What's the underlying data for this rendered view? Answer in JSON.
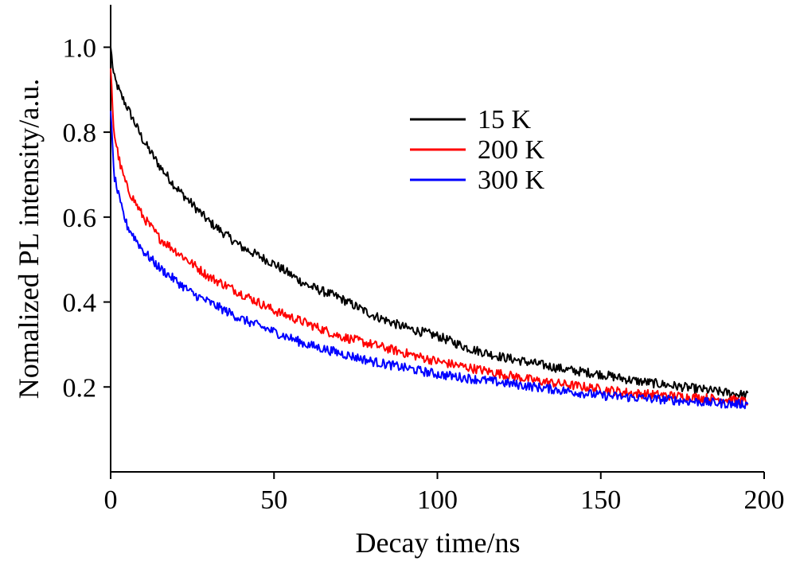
{
  "chart_data": {
    "type": "line",
    "title": "",
    "xlabel": "Decay time/ns",
    "ylabel": "Nomalized PL intensity/a.u.",
    "xlim": [
      0,
      200
    ],
    "ylim": [
      0.0,
      1.1
    ],
    "xticks": [
      0,
      50,
      100,
      150,
      200
    ],
    "xtick_labels": [
      "0",
      "50",
      "100",
      "150",
      "200"
    ],
    "yticks": [
      0.2,
      0.4,
      0.6,
      0.8,
      1.0
    ],
    "ytick_labels": [
      "0.2",
      "0.4",
      "0.6",
      "0.8",
      "1.0"
    ],
    "grid": false,
    "legend_position": "upper-center",
    "series": [
      {
        "name": "15 K",
        "color": "#000000",
        "x": [
          0,
          1,
          3,
          5,
          10,
          15,
          20,
          25,
          30,
          40,
          50,
          60,
          70,
          80,
          90,
          100,
          110,
          120,
          130,
          140,
          150,
          160,
          170,
          180,
          190,
          195
        ],
        "y": [
          1.0,
          0.93,
          0.89,
          0.86,
          0.78,
          0.72,
          0.67,
          0.63,
          0.59,
          0.53,
          0.49,
          0.44,
          0.41,
          0.37,
          0.34,
          0.32,
          0.29,
          0.27,
          0.255,
          0.24,
          0.23,
          0.215,
          0.205,
          0.195,
          0.185,
          0.18
        ]
      },
      {
        "name": "200 K",
        "color": "#ff0000",
        "x": [
          0,
          1,
          3,
          5,
          10,
          15,
          20,
          25,
          30,
          40,
          50,
          60,
          70,
          80,
          90,
          100,
          110,
          120,
          130,
          140,
          150,
          160,
          170,
          180,
          190,
          195
        ],
        "y": [
          0.95,
          0.8,
          0.72,
          0.67,
          0.6,
          0.55,
          0.52,
          0.49,
          0.46,
          0.42,
          0.38,
          0.35,
          0.32,
          0.3,
          0.28,
          0.26,
          0.245,
          0.23,
          0.215,
          0.205,
          0.195,
          0.185,
          0.18,
          0.175,
          0.17,
          0.165
        ]
      },
      {
        "name": "300 K",
        "color": "#0000ff",
        "x": [
          0,
          1,
          3,
          5,
          10,
          15,
          20,
          25,
          30,
          40,
          50,
          60,
          70,
          80,
          90,
          100,
          110,
          120,
          130,
          140,
          150,
          160,
          170,
          180,
          190,
          195
        ],
        "y": [
          0.85,
          0.7,
          0.63,
          0.58,
          0.52,
          0.48,
          0.45,
          0.42,
          0.4,
          0.36,
          0.33,
          0.3,
          0.28,
          0.26,
          0.245,
          0.23,
          0.22,
          0.21,
          0.2,
          0.19,
          0.18,
          0.175,
          0.17,
          0.165,
          0.16,
          0.16
        ]
      }
    ]
  }
}
